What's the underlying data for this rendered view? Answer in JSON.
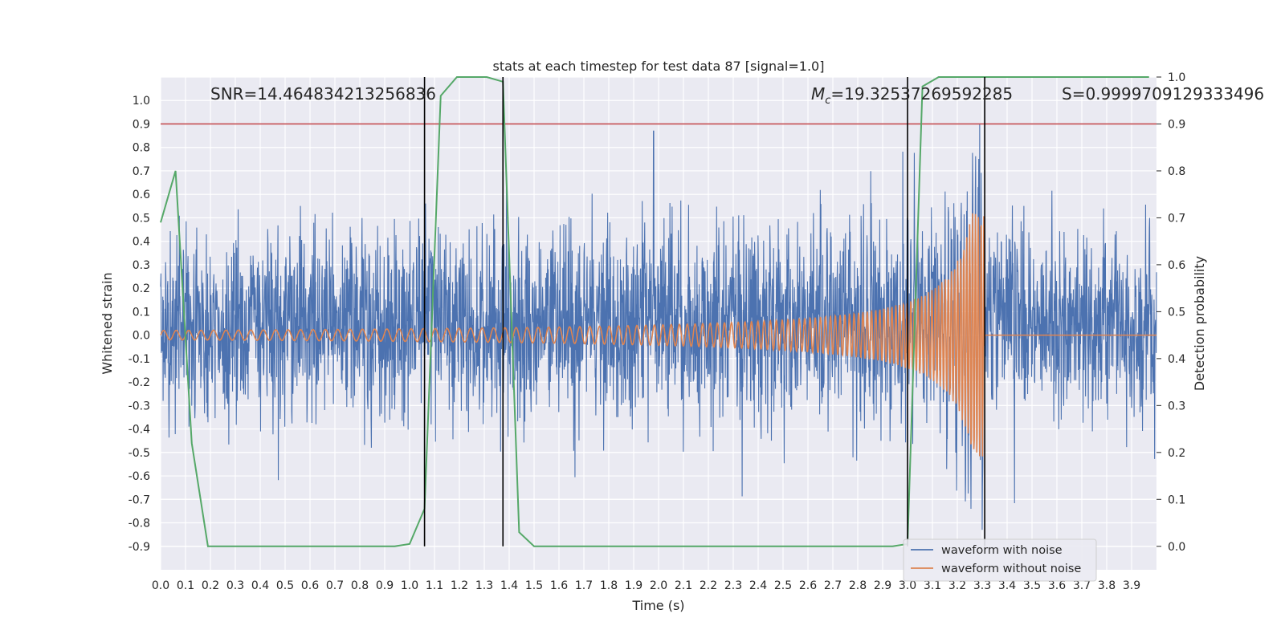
{
  "chart_data": {
    "type": "line",
    "title": "stats at each timestep for test data 87 [signal=1.0]",
    "xlabel": "Time (s)",
    "ylabel_left": "Whitened strain",
    "ylabel_right": "Detection probability",
    "xlim": [
      0.0,
      4.0
    ],
    "ylim_left": [
      -1.0,
      1.1
    ],
    "ylim_right": [
      -0.05,
      1.0
    ],
    "x_ticks": [
      "0.0",
      "0.1",
      "0.2",
      "0.3",
      "0.4",
      "0.5",
      "0.6",
      "0.7",
      "0.8",
      "0.9",
      "1.0",
      "1.1",
      "1.2",
      "1.3",
      "1.4",
      "1.5",
      "1.6",
      "1.7",
      "1.8",
      "1.9",
      "2.0",
      "2.1",
      "2.2",
      "2.3",
      "2.4",
      "2.5",
      "2.6",
      "2.7",
      "2.8",
      "2.9",
      "3.0",
      "3.1",
      "3.2",
      "3.3",
      "3.4",
      "3.5",
      "3.6",
      "3.7",
      "3.8",
      "3.9"
    ],
    "y_ticks_left": [
      "-0.9",
      "-0.8",
      "-0.7",
      "-0.6",
      "-0.5",
      "-0.4",
      "-0.3",
      "-0.2",
      "-0.1",
      "0.0",
      "0.1",
      "0.2",
      "0.3",
      "0.4",
      "0.5",
      "0.6",
      "0.7",
      "0.8",
      "0.9",
      "1.0"
    ],
    "y_ticks_right": [
      "0.0",
      "0.1",
      "0.2",
      "0.3",
      "0.4",
      "0.5",
      "0.6",
      "0.7",
      "0.8",
      "0.9",
      "1.0"
    ],
    "grid": true,
    "legend_position": "bottom-right",
    "annotations": {
      "snr": "SNR=14.464834213256836",
      "mc_symbol": "M",
      "mc_sub": "c",
      "mc_value": "=19.32537269592285",
      "s": "S=0.9999709129333496"
    },
    "colors": {
      "noise": "#4c72b0",
      "clean": "#dd8452",
      "probability": "#55a868",
      "threshold": "#c44e52",
      "markers": "#000000",
      "background": "#eaeaf2"
    },
    "series": [
      {
        "name": "waveform with noise",
        "axis": "left",
        "description_values": {
          "approx_std": 0.2,
          "notable_peaks": [
            [
              1.98,
              0.87
            ],
            [
              3.29,
              0.9
            ],
            [
              3.3,
              -0.83
            ]
          ]
        }
      },
      {
        "name": "waveform without noise",
        "axis": "left",
        "chirp": {
          "t_merge": 3.31,
          "start_amplitude": 0.02,
          "peak_amplitude": 0.52,
          "start_freq_hz": 20,
          "end_freq_hz": 110
        }
      },
      {
        "axis": "right",
        "x": [
          0.0,
          0.06,
          0.125,
          0.19,
          0.25,
          0.5,
          0.94,
          1.0,
          1.06,
          1.125,
          1.19,
          1.31,
          1.375,
          1.44,
          1.5,
          2.0,
          2.94,
          3.0,
          3.06,
          3.125,
          3.19,
          3.5,
          3.97
        ],
        "y": [
          0.69,
          0.8,
          0.22,
          0.0,
          0.0,
          0.0,
          0.0,
          0.005,
          0.08,
          0.96,
          1.0,
          1.0,
          0.99,
          0.03,
          0.0,
          0.0,
          0.0,
          0.005,
          0.98,
          1.0,
          1.0,
          1.0,
          1.0
        ]
      },
      {
        "axis": "right",
        "constant": 0.9
      }
    ],
    "vertical_markers": [
      1.06,
      1.375,
      3.0,
      3.31
    ]
  }
}
